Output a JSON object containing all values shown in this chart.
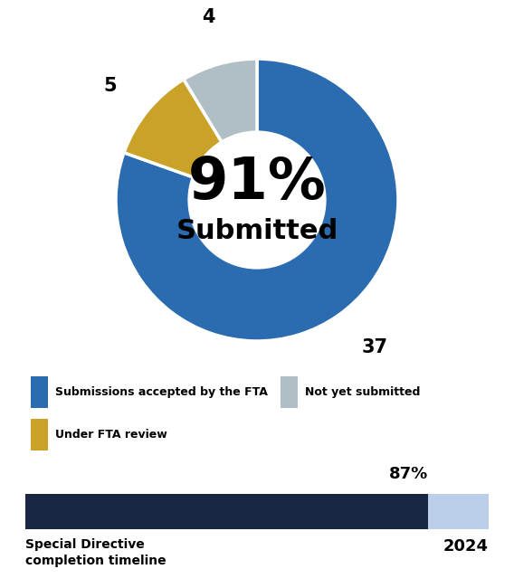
{
  "pie_values": [
    37,
    5,
    4
  ],
  "pie_colors": [
    "#2B6CB0",
    "#C9A227",
    "#B0BEC5"
  ],
  "center_text_pct": "91%",
  "center_text_sub": "Submitted",
  "pie_labels": [
    "37",
    "5",
    "4"
  ],
  "legend_items": [
    {
      "label": "Submissions accepted by the FTA",
      "color": "#2B6CB0"
    },
    {
      "label": "Not yet submitted",
      "color": "#B0BEC5"
    },
    {
      "label": "Under FTA review",
      "color": "#C9A227"
    }
  ],
  "bar_filled_pct": 0.87,
  "bar_filled_color": "#1A2744",
  "bar_empty_color": "#BBCFE8",
  "bar_label_pct": "87%",
  "bar_label_year": "2024",
  "bar_xlabel": "Special Directive\ncompletion timeline",
  "background_color": "#FFFFFF",
  "donut_width": 0.52
}
